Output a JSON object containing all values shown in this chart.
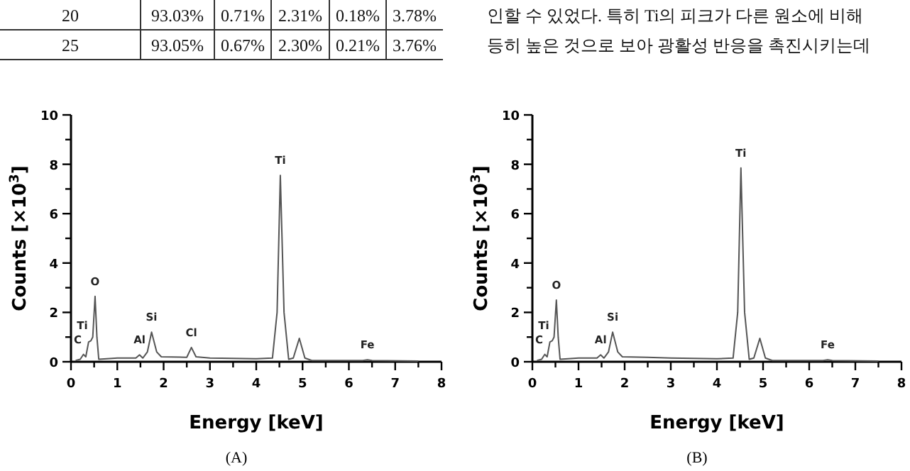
{
  "chart_data": [
    {
      "type": "other",
      "annotations": [
        "20",
        "93.03%",
        "0.71%",
        "2.31%",
        "0.18%",
        "3.78%",
        "25",
        "93.05%",
        "0.67%",
        "2.30%",
        "0.21%",
        "3.76%",
        "인할 수 있었다. 특히 Ti의 피크가 다른 원소에 비해",
        "등히 높은 것으로 보아 광활성 반응을 촉진시키는데"
      ]
    },
    {
      "type": "line",
      "xlabel": "Energy [keV]",
      "ylabel": "Counts [×10$^{3}$]",
      "xlim": [
        0,
        8
      ],
      "ylim": [
        0,
        10
      ],
      "xticks": [
        0,
        {
          "value": 0.5,
          "label": null
        },
        1,
        {
          "value": 1.5,
          "label": null
        },
        2,
        {
          "value": 2.5,
          "label": null
        },
        3,
        {
          "value": 3.5,
          "label": null
        },
        4,
        {
          "value": 4.5,
          "label": null
        },
        5,
        {
          "value": 5.5,
          "label": null
        },
        6,
        {
          "value": 6.5,
          "label": null
        },
        7,
        {
          "value": 7.5,
          "label": null
        },
        8
      ],
      "yticks": [
        0,
        {
          "value": 1,
          "label": null
        },
        2,
        {
          "value": 3,
          "label": null
        },
        4,
        {
          "value": 5,
          "label": null
        },
        6,
        {
          "value": 7,
          "label": null
        },
        8,
        {
          "value": 9,
          "label": null
        },
        10
      ],
      "series": [
        {
          "color": "#555555",
          "x": [
            0.1,
            0.2,
            0.27,
            0.32,
            0.38,
            0.43,
            0.47,
            0.52,
            0.56,
            0.6,
            1.0,
            1.4,
            1.48,
            1.55,
            1.65,
            1.74,
            1.85,
            1.95,
            2.5,
            2.6,
            2.7,
            3.0,
            4.0,
            4.35,
            4.45,
            4.52,
            4.6,
            4.7,
            4.8,
            4.93,
            5.05,
            5.2,
            6.3,
            6.4,
            6.5,
            7.5
          ],
          "values": [
            0.05,
            0.1,
            0.3,
            0.2,
            0.8,
            0.85,
            1.0,
            2.65,
            1.0,
            0.1,
            0.15,
            0.15,
            0.28,
            0.15,
            0.4,
            1.2,
            0.4,
            0.2,
            0.18,
            0.58,
            0.2,
            0.15,
            0.12,
            0.15,
            2.0,
            7.55,
            2.0,
            0.1,
            0.15,
            0.95,
            0.15,
            0.05,
            0.05,
            0.08,
            0.05,
            0.03
          ]
        }
      ],
      "annotations": [
        {
          "text": "C",
          "x": 0.27,
          "y": 0.3
        },
        {
          "text": "Ti",
          "x": 0.43,
          "y": 0.85
        },
        {
          "text": "O",
          "x": 0.52,
          "y": 2.65
        },
        {
          "text": "Al",
          "x": 1.48,
          "y": 0.28
        },
        {
          "text": "Si",
          "x": 1.74,
          "y": 1.2
        },
        {
          "text": "Cl",
          "x": 2.6,
          "y": 0.58
        },
        {
          "text": "Ti",
          "x": 4.52,
          "y": 7.55
        },
        {
          "text": "Fe",
          "x": 6.4,
          "y": 0.08
        },
        "(A)"
      ]
    },
    {
      "type": "line",
      "xlabel": "Energy [keV]",
      "ylabel": "Counts [×10$^{3}$]",
      "xlim": [
        0,
        8
      ],
      "ylim": [
        0,
        10
      ],
      "xticks": [
        0,
        {
          "value": 0.5,
          "label": null
        },
        1,
        {
          "value": 1.5,
          "label": null
        },
        2,
        {
          "value": 2.5,
          "label": null
        },
        3,
        {
          "value": 3.5,
          "label": null
        },
        4,
        {
          "value": 4.5,
          "label": null
        },
        5,
        {
          "value": 5.5,
          "label": null
        },
        6,
        {
          "value": 6.5,
          "label": null
        },
        7,
        {
          "value": 7.5,
          "label": null
        },
        8
      ],
      "yticks": [
        0,
        {
          "value": 1,
          "label": null
        },
        2,
        {
          "value": 3,
          "label": null
        },
        4,
        {
          "value": 5,
          "label": null
        },
        6,
        {
          "value": 7,
          "label": null
        },
        8,
        {
          "value": 9,
          "label": null
        },
        10
      ],
      "series": [
        {
          "color": "#555555",
          "x": [
            0.1,
            0.2,
            0.27,
            0.32,
            0.38,
            0.43,
            0.47,
            0.52,
            0.56,
            0.6,
            1.0,
            1.4,
            1.48,
            1.55,
            1.65,
            1.74,
            1.85,
            1.95,
            2.5,
            3.0,
            4.0,
            4.35,
            4.45,
            4.52,
            4.6,
            4.7,
            4.8,
            4.93,
            5.05,
            5.2,
            6.3,
            6.4,
            6.5,
            7.5
          ],
          "values": [
            0.05,
            0.1,
            0.3,
            0.2,
            0.8,
            0.85,
            1.0,
            2.5,
            1.0,
            0.1,
            0.15,
            0.15,
            0.28,
            0.15,
            0.4,
            1.2,
            0.4,
            0.2,
            0.18,
            0.15,
            0.12,
            0.15,
            2.0,
            7.85,
            2.0,
            0.1,
            0.15,
            0.95,
            0.15,
            0.05,
            0.05,
            0.08,
            0.05,
            0.03
          ]
        }
      ],
      "annotations": [
        {
          "text": "C",
          "x": 0.27,
          "y": 0.3
        },
        {
          "text": "Ti",
          "x": 0.43,
          "y": 0.85
        },
        {
          "text": "O",
          "x": 0.52,
          "y": 2.5
        },
        {
          "text": "Al",
          "x": 1.48,
          "y": 0.28
        },
        {
          "text": "Si",
          "x": 1.74,
          "y": 1.2
        },
        {
          "text": "Ti",
          "x": 4.52,
          "y": 7.85
        },
        {
          "text": "Fe",
          "x": 6.4,
          "y": 0.08
        },
        "(B)"
      ]
    }
  ]
}
